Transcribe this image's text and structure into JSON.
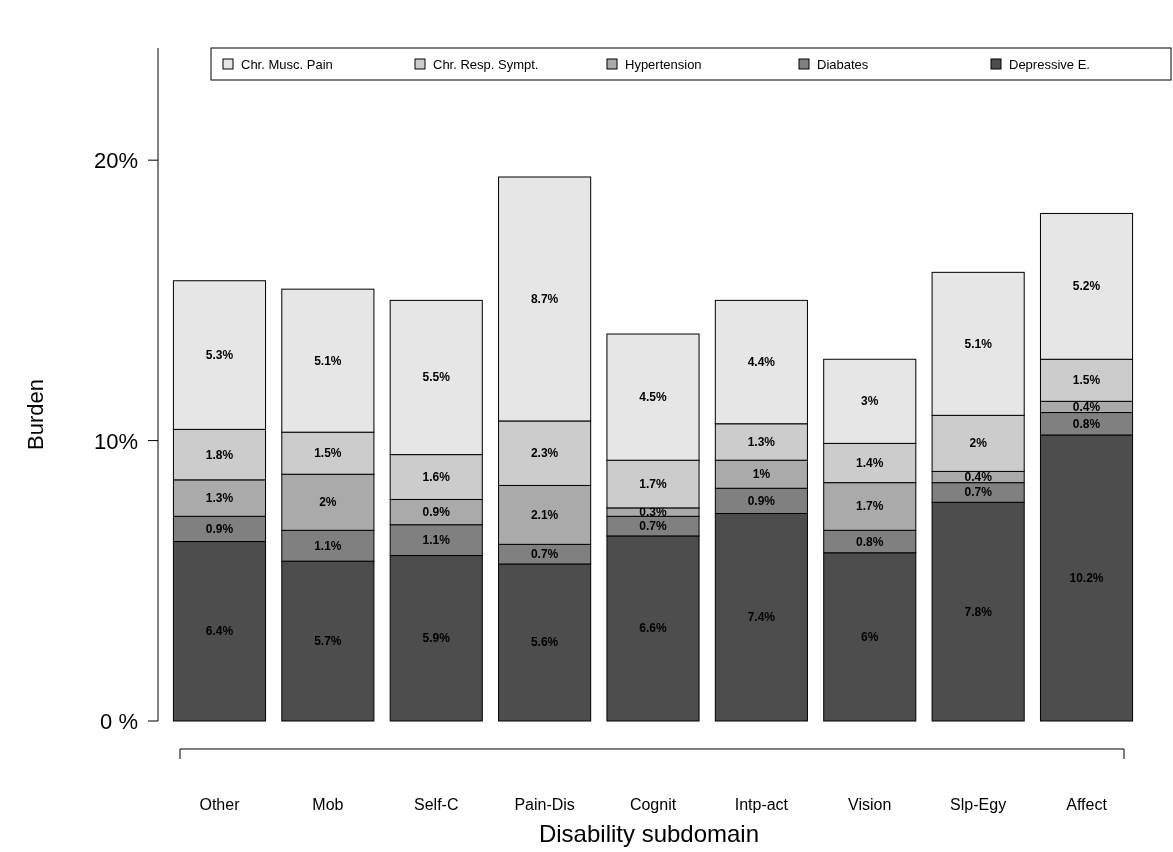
{
  "chart_data": {
    "type": "bar",
    "stacked": true,
    "xlabel": "Disability subdomain",
    "ylabel": "Burden",
    "categories": [
      "Other",
      "Mob",
      "Self-C",
      "Pain-Dis",
      "Cognit",
      "Intp-act",
      "Vision",
      "Slp-Egy",
      "Affect"
    ],
    "ylim": [
      0,
      24
    ],
    "yticks": [
      {
        "value": 0,
        "label": "0 %"
      },
      {
        "value": 10,
        "label": "10%"
      },
      {
        "value": 20,
        "label": "20%"
      }
    ],
    "legend": "top right",
    "grid": false,
    "series": [
      {
        "name": "Depressive E.",
        "color": "#4d4d4d",
        "values": [
          6.4,
          5.7,
          5.9,
          5.6,
          6.6,
          7.4,
          6,
          7.8,
          10.2
        ],
        "value_labels": [
          "6.4%",
          "5.7%",
          "5.9%",
          "5.6%",
          "6.6%",
          "7.4%",
          "6%",
          "7.8%",
          "10.2%"
        ]
      },
      {
        "name": "Diabates",
        "color": "#808080",
        "values": [
          0.9,
          1.1,
          1.1,
          0.7,
          0.7,
          0.9,
          0.8,
          0.7,
          0.8
        ],
        "value_labels": [
          "0.9%",
          "1.1%",
          "1.1%",
          "0.7%",
          "0.7%",
          "0.9%",
          "0.8%",
          "0.7%",
          "0.8%"
        ]
      },
      {
        "name": "Hypertension",
        "color": "#aaaaaa",
        "values": [
          1.3,
          2,
          0.9,
          2.1,
          0.3,
          1,
          1.7,
          0.4,
          0.4
        ],
        "value_labels": [
          "1.3%",
          "2%",
          "0.9%",
          "2.1%",
          "0.3%",
          "1%",
          "1.7%",
          "0.4%",
          "0.4%"
        ]
      },
      {
        "name": "Chr. Resp. Sympt.",
        "color": "#cccccc",
        "values": [
          1.8,
          1.5,
          1.6,
          2.3,
          1.7,
          1.3,
          1.4,
          2,
          1.5
        ],
        "value_labels": [
          "1.8%",
          "1.5%",
          "1.6%",
          "2.3%",
          "1.7%",
          "1.3%",
          "1.4%",
          "2%",
          "1.5%"
        ]
      },
      {
        "name": "Chr. Musc. Pain",
        "color": "#e6e6e6",
        "values": [
          5.3,
          5.1,
          5.5,
          8.7,
          4.5,
          4.4,
          3,
          5.1,
          5.2
        ],
        "value_labels": [
          "5.3%",
          "5.1%",
          "5.5%",
          "8.7%",
          "4.5%",
          "4.4%",
          "3%",
          "5.1%",
          "5.2%"
        ]
      }
    ]
  }
}
